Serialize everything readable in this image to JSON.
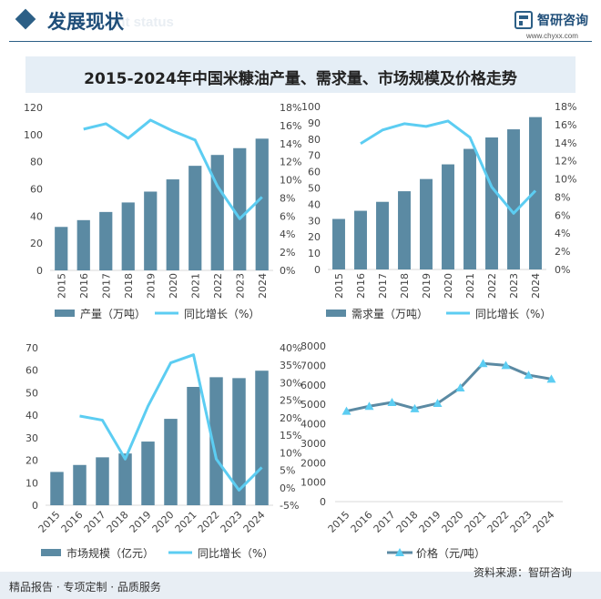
{
  "header": {
    "title": "发展现状",
    "ghost": "ent status",
    "brand_name": "智研咨询",
    "brand_url": "www.chyxx.com",
    "accent": "#2c5f86"
  },
  "main_title": "2015-2024年中国米糠油产量、需求量、市场规模及价格走势",
  "legend": {
    "production": "产量（万吨）",
    "demand": "需求量（万吨）",
    "growth": "同比增长（%）",
    "market": "市场规模（亿元）",
    "price": "价格（元/吨）"
  },
  "footer": {
    "left": "精品报告 · 专项定制 · 品质服务",
    "source": "资料来源：智研咨询"
  },
  "colors": {
    "bar": "#5b8aa3",
    "line": "#5ccdf2",
    "price_line": "#5b8aa3",
    "price_marker": "#5ccdf2"
  },
  "chart_data": [
    {
      "type": "bar",
      "categories": [
        "2015",
        "2016",
        "2017",
        "2018",
        "2019",
        "2020",
        "2021",
        "2022",
        "2023",
        "2024"
      ],
      "series": [
        {
          "name": "产量（万吨）",
          "axis": "left",
          "kind": "bar",
          "values": [
            32,
            37,
            43,
            50,
            58,
            67,
            77,
            85,
            90,
            97
          ]
        },
        {
          "name": "同比增长（%）",
          "axis": "right",
          "kind": "line",
          "values": [
            null,
            15.6,
            16.2,
            14.6,
            16.6,
            15.4,
            14.4,
            9.3,
            5.7,
            8.1
          ]
        }
      ],
      "y_left": {
        "min": 0,
        "max": 120,
        "ticks": [
          "0",
          "20",
          "40",
          "60",
          "80",
          "100",
          "120"
        ]
      },
      "y_right": {
        "min": 0,
        "max": 18,
        "ticks": [
          "0%",
          "2%",
          "4%",
          "6%",
          "8%",
          "10%",
          "12%",
          "14%",
          "16%",
          "18%"
        ]
      }
    },
    {
      "type": "bar",
      "categories": [
        "2015",
        "2016",
        "2017",
        "2018",
        "2019",
        "2020",
        "2021",
        "2022",
        "2023",
        "2024"
      ],
      "series": [
        {
          "name": "需求量（万吨）",
          "axis": "left",
          "kind": "bar",
          "values": [
            31,
            36,
            41.5,
            48,
            55.5,
            64.5,
            74,
            81,
            86,
            93.5
          ]
        },
        {
          "name": "同比增长（%）",
          "axis": "right",
          "kind": "line",
          "values": [
            null,
            13.9,
            15.4,
            16.1,
            15.8,
            16.4,
            14.6,
            9.1,
            6.2,
            8.7
          ]
        }
      ],
      "y_left": {
        "min": 0,
        "max": 100,
        "ticks": [
          "0",
          "10",
          "20",
          "30",
          "40",
          "50",
          "60",
          "70",
          "80",
          "90",
          "100"
        ]
      },
      "y_right": {
        "min": 0,
        "max": 18,
        "ticks": [
          "0%",
          "2%",
          "4%",
          "6%",
          "8%",
          "10%",
          "12%",
          "14%",
          "16%",
          "18%"
        ]
      }
    },
    {
      "type": "bar",
      "categories": [
        "2015",
        "2016",
        "2017",
        "2018",
        "2019",
        "2020",
        "2021",
        "2022",
        "2023",
        "2024"
      ],
      "series": [
        {
          "name": "市场规模（亿元）",
          "axis": "left",
          "kind": "bar",
          "values": [
            14.8,
            17.9,
            21.3,
            23.0,
            28.3,
            38.4,
            52.6,
            56.9,
            56.5,
            59.8
          ]
        },
        {
          "name": "同比增长（%）",
          "axis": "right",
          "kind": "line",
          "values": [
            null,
            20.5,
            19.3,
            8.2,
            23.3,
            35.7,
            38.0,
            8.2,
            -0.7,
            5.8
          ]
        }
      ],
      "y_left": {
        "min": 0,
        "max": 70,
        "ticks": [
          "0",
          "10",
          "20",
          "30",
          "40",
          "50",
          "60",
          "70"
        ]
      },
      "y_right": {
        "min": -5,
        "max": 40,
        "ticks": [
          "-5%",
          "0%",
          "5%",
          "10%",
          "15%",
          "20%",
          "25%",
          "30%",
          "35%",
          "40%"
        ]
      }
    },
    {
      "type": "line",
      "categories": [
        "2015",
        "2016",
        "2017",
        "2018",
        "2019",
        "2020",
        "2021",
        "2022",
        "2023",
        "2024"
      ],
      "series": [
        {
          "name": "价格（元/吨）",
          "axis": "left",
          "kind": "line",
          "values": [
            4650,
            4900,
            5100,
            4780,
            5050,
            5850,
            7100,
            7000,
            6500,
            6300
          ]
        }
      ],
      "y_left": {
        "min": 0,
        "max": 8000,
        "ticks": [
          "0",
          "1000",
          "2000",
          "3000",
          "4000",
          "5000",
          "6000",
          "7000",
          "8000"
        ]
      }
    }
  ]
}
